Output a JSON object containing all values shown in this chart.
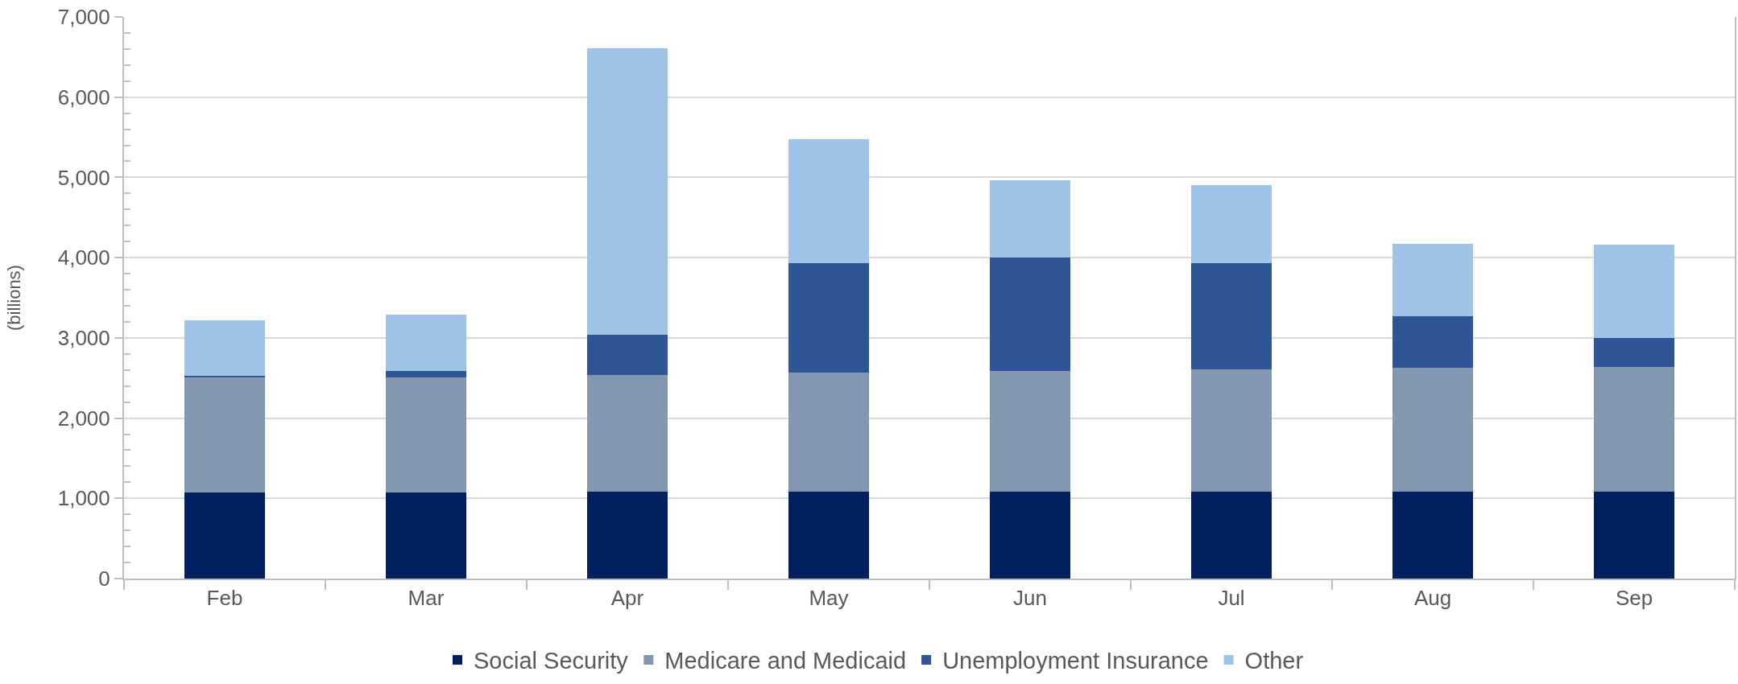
{
  "chart_data": {
    "type": "bar",
    "stacked": true,
    "ylabel": "(billions)",
    "categories": [
      "Feb",
      "Mar",
      "Apr",
      "May",
      "Jun",
      "Jul",
      "Aug",
      "Sep"
    ],
    "series": [
      {
        "name": "Social Security",
        "color": "#002060",
        "values": [
          1070,
          1070,
          1080,
          1080,
          1080,
          1080,
          1080,
          1080
        ]
      },
      {
        "name": "Medicare and Medicaid",
        "color": "#8497b0",
        "values": [
          1440,
          1440,
          1460,
          1490,
          1510,
          1530,
          1550,
          1560
        ]
      },
      {
        "name": "Unemployment Insurance",
        "color": "#2f5597",
        "values": [
          20,
          80,
          500,
          1360,
          1410,
          1320,
          640,
          360
        ]
      },
      {
        "name": "Other",
        "color": "#9dc3e6",
        "values": [
          690,
          700,
          3570,
          1550,
          960,
          970,
          900,
          1160
        ]
      }
    ],
    "ylim": [
      0,
      7000
    ],
    "yticks": [
      0,
      {
        "value": 200,
        "label": null
      },
      {
        "value": 400,
        "label": null
      },
      {
        "value": 600,
        "label": null
      },
      {
        "value": 800,
        "label": null
      },
      {
        "value": 1000,
        "label": "1,000"
      },
      {
        "value": 1200,
        "label": null
      },
      {
        "value": 1400,
        "label": null
      },
      {
        "value": 1600,
        "label": null
      },
      {
        "value": 1800,
        "label": null
      },
      {
        "value": 2000,
        "label": "2,000"
      },
      {
        "value": 2200,
        "label": null
      },
      {
        "value": 2400,
        "label": null
      },
      {
        "value": 2600,
        "label": null
      },
      {
        "value": 2800,
        "label": null
      },
      {
        "value": 3000,
        "label": "3,000"
      },
      {
        "value": 3200,
        "label": null
      },
      {
        "value": 3400,
        "label": null
      },
      {
        "value": 3600,
        "label": null
      },
      {
        "value": 3800,
        "label": null
      },
      {
        "value": 4000,
        "label": "4,000"
      },
      {
        "value": 4200,
        "label": null
      },
      {
        "value": 4400,
        "label": null
      },
      {
        "value": 4600,
        "label": null
      },
      {
        "value": 4800,
        "label": null
      },
      {
        "value": 5000,
        "label": "5,000"
      },
      {
        "value": 5200,
        "label": null
      },
      {
        "value": 5400,
        "label": null
      },
      {
        "value": 5600,
        "label": null
      },
      {
        "value": 5800,
        "label": null
      },
      {
        "value": 6000,
        "label": "6,000"
      },
      {
        "value": 6200,
        "label": null
      },
      {
        "value": 6400,
        "label": null
      },
      {
        "value": 6600,
        "label": null
      },
      {
        "value": 6800,
        "label": null
      },
      {
        "value": 7000,
        "label": "7,000"
      }
    ],
    "grid": "y",
    "legend": "bottom"
  }
}
